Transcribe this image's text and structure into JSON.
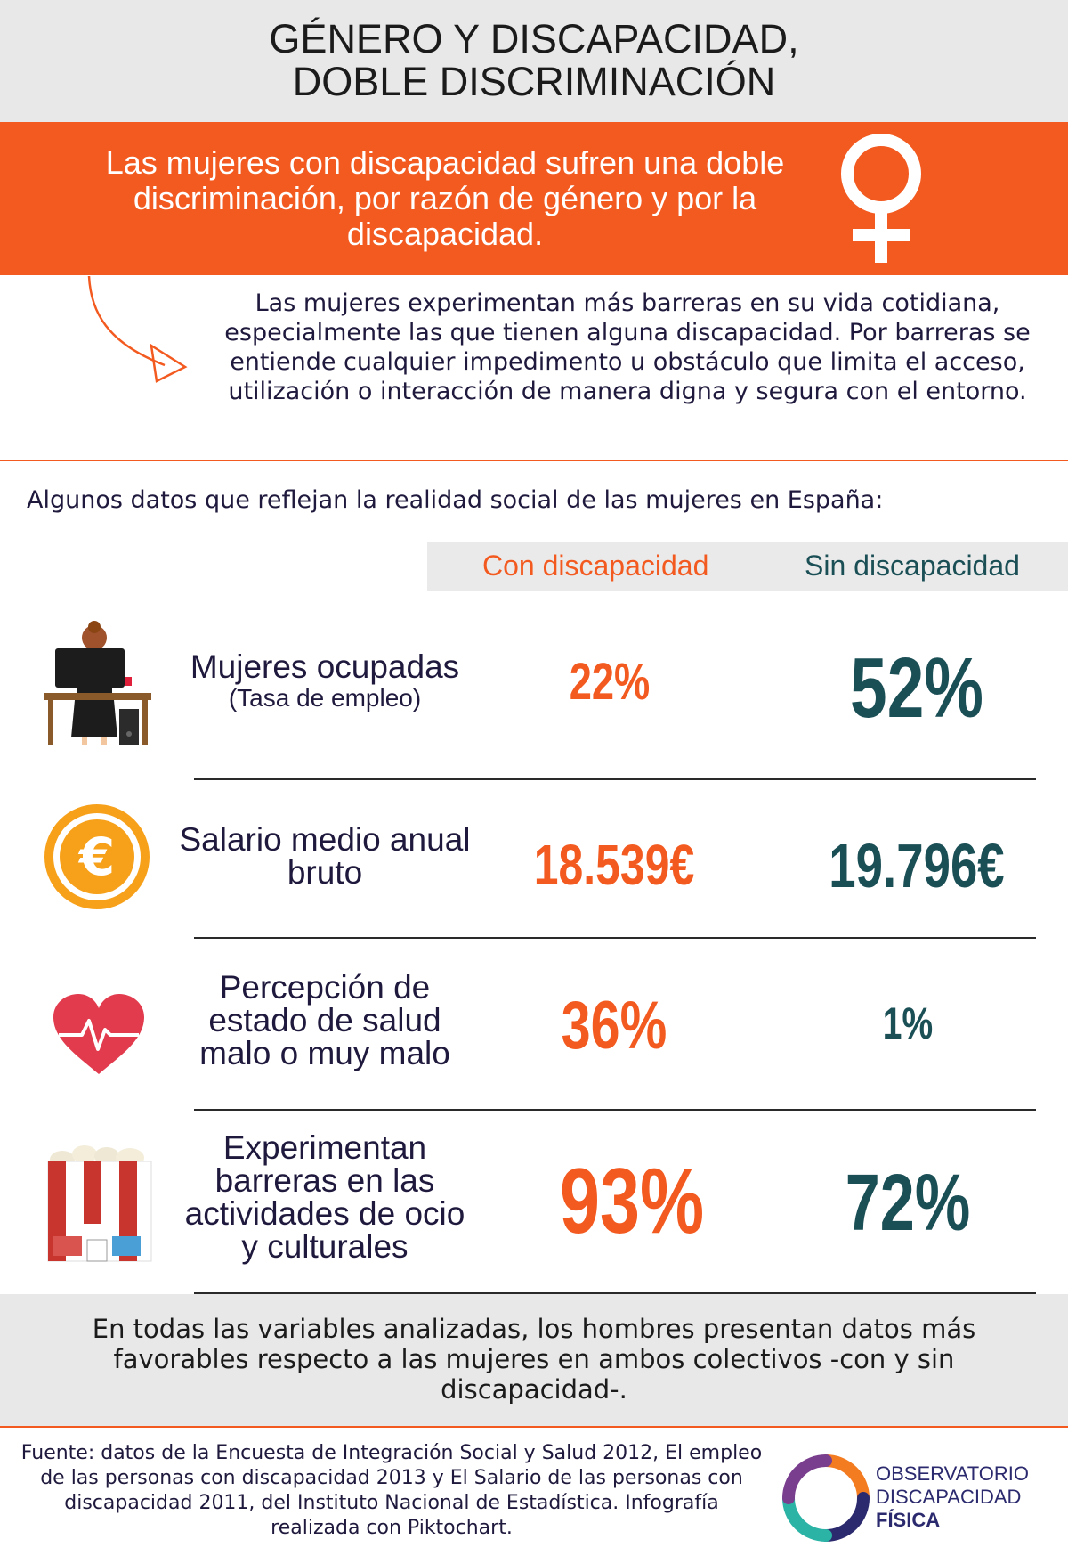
{
  "header": {
    "title_line1": "GÉNERO Y DISCAPACIDAD,",
    "title_line2": "DOBLE DISCRIMINACIÓN"
  },
  "band": {
    "text": "Las mujeres con discapacidad sufren una doble discriminación, por razón de género y por la discapacidad."
  },
  "intro": {
    "text": "Las mujeres experimentan más barreras en su vida cotidiana, especialmente las que tienen alguna discapacidad. Por barreras se entiende cualquier impedimento u obstáculo que limita el acceso, utilización o interacción de manera digna y segura con el entorno."
  },
  "lead": "Algunos datos que reflejan la realidad social de las mujeres en España:",
  "columns": {
    "con": "Con discapacidad",
    "sin": "Sin discapacidad"
  },
  "rows": [
    {
      "label": "Mujeres ocupadas",
      "sub": "(Tasa de empleo)",
      "con": "22%",
      "sin": "52%",
      "icon": "office-worker-icon"
    },
    {
      "label": "Salario medio anual bruto",
      "con": "18.539€",
      "sin": "19.796€",
      "icon": "euro-coin-icon"
    },
    {
      "label": "Percepción de estado de salud malo o muy malo",
      "con": "36%",
      "sin": "1%",
      "icon": "heart-pulse-icon"
    },
    {
      "label": "Experimentan barreras en las actividades de ocio y culturales",
      "con": "93%",
      "sin": "72%",
      "icon": "popcorn-icon"
    }
  ],
  "footer": {
    "text": "En todas las variables analizadas, los hombres presentan datos más favorables respecto a las mujeres en ambos colectivos -con y sin discapacidad-."
  },
  "source": {
    "text": "Fuente: datos de la Encuesta de Integración Social y Salud 2012, El empleo de las personas con discapacidad 2013 y El Salario de las personas con discapacidad 2011, del Instituto Nacional de Estadística. Infografía realizada con Piktochart."
  },
  "logo": {
    "line1": "OBSERVATORIO",
    "line2": "DISCAPACIDAD",
    "line3": "FÍSICA"
  },
  "colors": {
    "orange": "#f35a20",
    "teal": "#1b4f56",
    "navy": "#1f1a3d",
    "gold": "#f7a11a",
    "red": "#e23b4e"
  }
}
